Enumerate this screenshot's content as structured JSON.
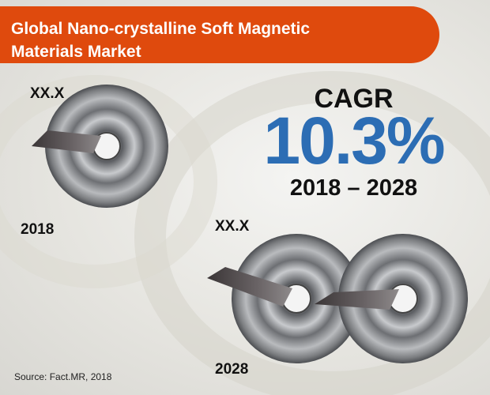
{
  "header": {
    "title": "Global Nano-crystalline Soft Magnetic Materials Market"
  },
  "panels": [
    {
      "value_label": "XX.X",
      "year": "2018"
    },
    {
      "value_label": "XX.X",
      "year": "2028"
    }
  ],
  "cagr": {
    "label": "CAGR",
    "value": "10.3%",
    "period": "2018 – 2028"
  },
  "source": "Source: Fact.MR, 2018"
}
